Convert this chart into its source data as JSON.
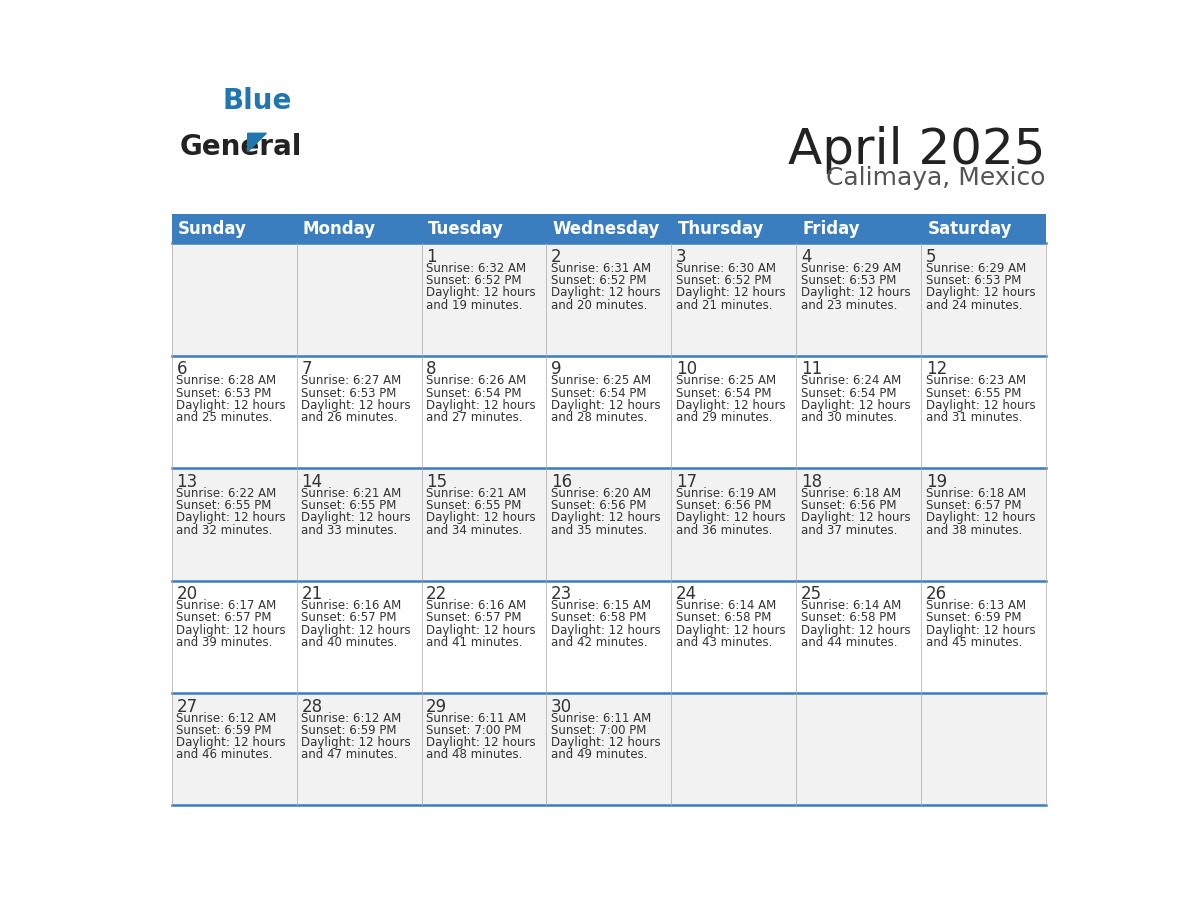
{
  "title": "April 2025",
  "subtitle": "Calimaya, Mexico",
  "header_color": "#3a7ebf",
  "header_text_color": "#ffffff",
  "day_names": [
    "Sunday",
    "Monday",
    "Tuesday",
    "Wednesday",
    "Thursday",
    "Friday",
    "Saturday"
  ],
  "background_color": "#ffffff",
  "cell_text_color": "#333333",
  "separator_color": "#3a7ebf",
  "days": [
    {
      "day": 1,
      "col": 2,
      "row": 0,
      "sunrise": "6:32 AM",
      "sunset": "6:52 PM",
      "daylight_hours": 12,
      "daylight_minutes": 19
    },
    {
      "day": 2,
      "col": 3,
      "row": 0,
      "sunrise": "6:31 AM",
      "sunset": "6:52 PM",
      "daylight_hours": 12,
      "daylight_minutes": 20
    },
    {
      "day": 3,
      "col": 4,
      "row": 0,
      "sunrise": "6:30 AM",
      "sunset": "6:52 PM",
      "daylight_hours": 12,
      "daylight_minutes": 21
    },
    {
      "day": 4,
      "col": 5,
      "row": 0,
      "sunrise": "6:29 AM",
      "sunset": "6:53 PM",
      "daylight_hours": 12,
      "daylight_minutes": 23
    },
    {
      "day": 5,
      "col": 6,
      "row": 0,
      "sunrise": "6:29 AM",
      "sunset": "6:53 PM",
      "daylight_hours": 12,
      "daylight_minutes": 24
    },
    {
      "day": 6,
      "col": 0,
      "row": 1,
      "sunrise": "6:28 AM",
      "sunset": "6:53 PM",
      "daylight_hours": 12,
      "daylight_minutes": 25
    },
    {
      "day": 7,
      "col": 1,
      "row": 1,
      "sunrise": "6:27 AM",
      "sunset": "6:53 PM",
      "daylight_hours": 12,
      "daylight_minutes": 26
    },
    {
      "day": 8,
      "col": 2,
      "row": 1,
      "sunrise": "6:26 AM",
      "sunset": "6:54 PM",
      "daylight_hours": 12,
      "daylight_minutes": 27
    },
    {
      "day": 9,
      "col": 3,
      "row": 1,
      "sunrise": "6:25 AM",
      "sunset": "6:54 PM",
      "daylight_hours": 12,
      "daylight_minutes": 28
    },
    {
      "day": 10,
      "col": 4,
      "row": 1,
      "sunrise": "6:25 AM",
      "sunset": "6:54 PM",
      "daylight_hours": 12,
      "daylight_minutes": 29
    },
    {
      "day": 11,
      "col": 5,
      "row": 1,
      "sunrise": "6:24 AM",
      "sunset": "6:54 PM",
      "daylight_hours": 12,
      "daylight_minutes": 30
    },
    {
      "day": 12,
      "col": 6,
      "row": 1,
      "sunrise": "6:23 AM",
      "sunset": "6:55 PM",
      "daylight_hours": 12,
      "daylight_minutes": 31
    },
    {
      "day": 13,
      "col": 0,
      "row": 2,
      "sunrise": "6:22 AM",
      "sunset": "6:55 PM",
      "daylight_hours": 12,
      "daylight_minutes": 32
    },
    {
      "day": 14,
      "col": 1,
      "row": 2,
      "sunrise": "6:21 AM",
      "sunset": "6:55 PM",
      "daylight_hours": 12,
      "daylight_minutes": 33
    },
    {
      "day": 15,
      "col": 2,
      "row": 2,
      "sunrise": "6:21 AM",
      "sunset": "6:55 PM",
      "daylight_hours": 12,
      "daylight_minutes": 34
    },
    {
      "day": 16,
      "col": 3,
      "row": 2,
      "sunrise": "6:20 AM",
      "sunset": "6:56 PM",
      "daylight_hours": 12,
      "daylight_minutes": 35
    },
    {
      "day": 17,
      "col": 4,
      "row": 2,
      "sunrise": "6:19 AM",
      "sunset": "6:56 PM",
      "daylight_hours": 12,
      "daylight_minutes": 36
    },
    {
      "day": 18,
      "col": 5,
      "row": 2,
      "sunrise": "6:18 AM",
      "sunset": "6:56 PM",
      "daylight_hours": 12,
      "daylight_minutes": 37
    },
    {
      "day": 19,
      "col": 6,
      "row": 2,
      "sunrise": "6:18 AM",
      "sunset": "6:57 PM",
      "daylight_hours": 12,
      "daylight_minutes": 38
    },
    {
      "day": 20,
      "col": 0,
      "row": 3,
      "sunrise": "6:17 AM",
      "sunset": "6:57 PM",
      "daylight_hours": 12,
      "daylight_minutes": 39
    },
    {
      "day": 21,
      "col": 1,
      "row": 3,
      "sunrise": "6:16 AM",
      "sunset": "6:57 PM",
      "daylight_hours": 12,
      "daylight_minutes": 40
    },
    {
      "day": 22,
      "col": 2,
      "row": 3,
      "sunrise": "6:16 AM",
      "sunset": "6:57 PM",
      "daylight_hours": 12,
      "daylight_minutes": 41
    },
    {
      "day": 23,
      "col": 3,
      "row": 3,
      "sunrise": "6:15 AM",
      "sunset": "6:58 PM",
      "daylight_hours": 12,
      "daylight_minutes": 42
    },
    {
      "day": 24,
      "col": 4,
      "row": 3,
      "sunrise": "6:14 AM",
      "sunset": "6:58 PM",
      "daylight_hours": 12,
      "daylight_minutes": 43
    },
    {
      "day": 25,
      "col": 5,
      "row": 3,
      "sunrise": "6:14 AM",
      "sunset": "6:58 PM",
      "daylight_hours": 12,
      "daylight_minutes": 44
    },
    {
      "day": 26,
      "col": 6,
      "row": 3,
      "sunrise": "6:13 AM",
      "sunset": "6:59 PM",
      "daylight_hours": 12,
      "daylight_minutes": 45
    },
    {
      "day": 27,
      "col": 0,
      "row": 4,
      "sunrise": "6:12 AM",
      "sunset": "6:59 PM",
      "daylight_hours": 12,
      "daylight_minutes": 46
    },
    {
      "day": 28,
      "col": 1,
      "row": 4,
      "sunrise": "6:12 AM",
      "sunset": "6:59 PM",
      "daylight_hours": 12,
      "daylight_minutes": 47
    },
    {
      "day": 29,
      "col": 2,
      "row": 4,
      "sunrise": "6:11 AM",
      "sunset": "7:00 PM",
      "daylight_hours": 12,
      "daylight_minutes": 48
    },
    {
      "day": 30,
      "col": 3,
      "row": 4,
      "sunrise": "6:11 AM",
      "sunset": "7:00 PM",
      "daylight_hours": 12,
      "daylight_minutes": 49
    }
  ],
  "num_rows": 5,
  "logo_text_general": "General",
  "logo_text_blue": "Blue",
  "logo_color_general": "#222222",
  "logo_color_blue": "#2176ae",
  "logo_triangle_color": "#2176ae",
  "title_color": "#222222",
  "subtitle_color": "#555555",
  "title_fontsize": 36,
  "subtitle_fontsize": 18,
  "header_fontsize": 12,
  "day_num_fontsize": 12,
  "cell_fontsize": 8.5
}
